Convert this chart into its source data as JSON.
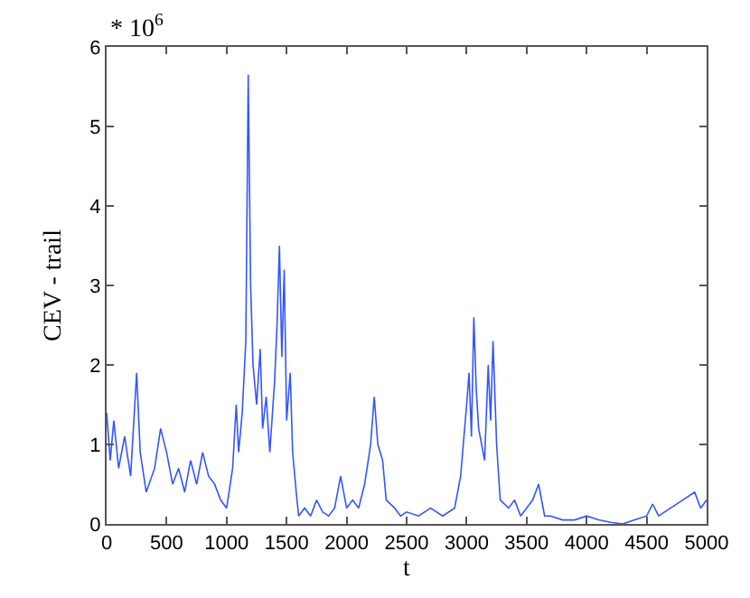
{
  "chart_data": {
    "type": "line",
    "xlabel": "t",
    "ylabel": "CEV - trail",
    "annotations": [
      "* 10$^{6}$"
    ],
    "x": [
      0,
      30,
      60,
      100,
      150,
      200,
      250,
      280,
      330,
      400,
      450,
      500,
      550,
      600,
      650,
      700,
      750,
      800,
      850,
      900,
      950,
      1000,
      1050,
      1080,
      1100,
      1130,
      1160,
      1180,
      1200,
      1220,
      1250,
      1280,
      1300,
      1330,
      1360,
      1400,
      1420,
      1440,
      1460,
      1480,
      1500,
      1530,
      1550,
      1580,
      1600,
      1650,
      1700,
      1750,
      1800,
      1850,
      1900,
      1950,
      2000,
      2050,
      2100,
      2150,
      2200,
      2230,
      2260,
      2300,
      2330,
      2400,
      2450,
      2500,
      2600,
      2700,
      2800,
      2900,
      2950,
      3000,
      3020,
      3040,
      3060,
      3080,
      3100,
      3150,
      3180,
      3200,
      3220,
      3250,
      3280,
      3350,
      3400,
      3450,
      3500,
      3550,
      3600,
      3650,
      3700,
      3800,
      3900,
      4000,
      4100,
      4200,
      4300,
      4400,
      4500,
      4550,
      4600,
      4700,
      4800,
      4900,
      4950,
      5000
    ],
    "series": [
      {
        "color": "#3355ff",
        "values": [
          1.4,
          0.8,
          1.3,
          0.7,
          1.1,
          0.6,
          1.9,
          0.9,
          0.4,
          0.7,
          1.2,
          0.9,
          0.5,
          0.7,
          0.4,
          0.8,
          0.5,
          0.9,
          0.6,
          0.5,
          0.3,
          0.2,
          0.7,
          1.5,
          0.9,
          1.4,
          2.3,
          5.65,
          3.0,
          2.0,
          1.5,
          2.2,
          1.2,
          1.6,
          0.9,
          1.8,
          2.5,
          3.5,
          2.1,
          3.2,
          1.3,
          1.9,
          0.9,
          0.4,
          0.1,
          0.2,
          0.1,
          0.3,
          0.15,
          0.1,
          0.2,
          0.6,
          0.2,
          0.3,
          0.2,
          0.5,
          1.0,
          1.6,
          1.0,
          0.8,
          0.3,
          0.2,
          0.1,
          0.15,
          0.1,
          0.2,
          0.1,
          0.2,
          0.6,
          1.5,
          1.9,
          1.1,
          2.6,
          1.7,
          1.2,
          0.8,
          2.0,
          1.3,
          2.3,
          1.0,
          0.3,
          0.2,
          0.3,
          0.1,
          0.2,
          0.3,
          0.5,
          0.1,
          0.1,
          0.05,
          0.05,
          0.1,
          0.05,
          0.02,
          0.0,
          0.05,
          0.1,
          0.25,
          0.1,
          0.2,
          0.3,
          0.4,
          0.2,
          0.3
        ]
      }
    ],
    "xlim": [
      0,
      5000
    ],
    "xticks": [
      0,
      500,
      1000,
      1500,
      2000,
      2500,
      3000,
      3500,
      4000,
      4500,
      5000
    ],
    "ylim": [
      0,
      6
    ],
    "yticks": [
      0,
      1,
      2,
      3,
      4,
      5,
      6
    ],
    "marker": "none",
    "line_style": "solid"
  }
}
